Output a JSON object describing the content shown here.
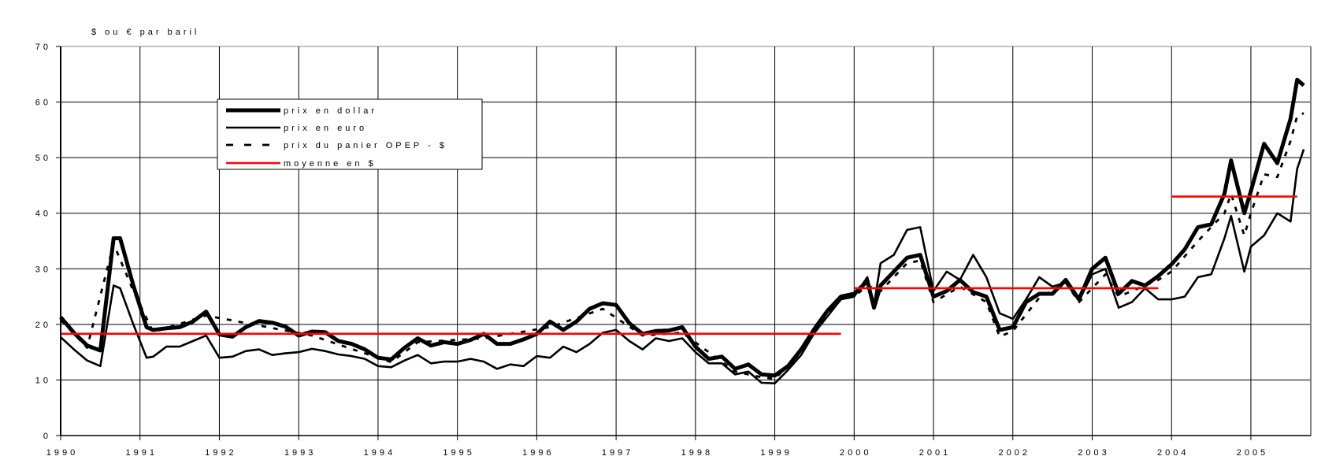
{
  "chart_data": {
    "type": "line",
    "title": "",
    "ylabel": "$ ou € par baril",
    "xlabel": "",
    "ylim": [
      0,
      70
    ],
    "yticks": [
      "0",
      "10",
      "20",
      "30",
      "40",
      "50",
      "60",
      "70"
    ],
    "xlim": [
      "1990-01",
      "2005-09"
    ],
    "xticks": [
      "1990",
      "1991",
      "1992",
      "1993",
      "1994",
      "1995",
      "1996",
      "1997",
      "1998",
      "1999",
      "2000",
      "2001",
      "2002",
      "2003",
      "2004",
      "2005"
    ],
    "grid": true,
    "legend_position": "top-left",
    "series": [
      {
        "name": "prix en dollar",
        "color": "#000000",
        "style": "thick-solid",
        "points": [
          [
            "1990-01",
            21.3
          ],
          [
            "1990-03",
            18.5
          ],
          [
            "1990-05",
            16.2
          ],
          [
            "1990-07",
            15.3
          ],
          [
            "1990-09",
            35.5
          ],
          [
            "1990-10",
            35.5
          ],
          [
            "1990-12",
            27
          ],
          [
            "1991-02",
            19.5
          ],
          [
            "1991-03",
            19
          ],
          [
            "1991-05",
            19.3
          ],
          [
            "1991-07",
            19.5
          ],
          [
            "1991-09",
            20.5
          ],
          [
            "1991-11",
            22.3
          ],
          [
            "1992-01",
            18.2
          ],
          [
            "1992-03",
            17.8
          ],
          [
            "1992-05",
            19.5
          ],
          [
            "1992-07",
            20.6
          ],
          [
            "1992-09",
            20.3
          ],
          [
            "1992-11",
            19.6
          ],
          [
            "1993-01",
            18
          ],
          [
            "1993-03",
            18.7
          ],
          [
            "1993-05",
            18.6
          ],
          [
            "1993-07",
            17
          ],
          [
            "1993-09",
            16.5
          ],
          [
            "1993-11",
            15.5
          ],
          [
            "1994-01",
            14
          ],
          [
            "1994-03",
            13.7
          ],
          [
            "1994-05",
            15.8
          ],
          [
            "1994-07",
            17.5
          ],
          [
            "1994-09",
            16.2
          ],
          [
            "1994-11",
            16.8
          ],
          [
            "1995-01",
            16.5
          ],
          [
            "1995-03",
            17.2
          ],
          [
            "1995-05",
            18.3
          ],
          [
            "1995-07",
            16.5
          ],
          [
            "1995-09",
            16.5
          ],
          [
            "1995-11",
            17.3
          ],
          [
            "1996-01",
            18.3
          ],
          [
            "1996-03",
            20.5
          ],
          [
            "1996-05",
            19
          ],
          [
            "1996-07",
            20.5
          ],
          [
            "1996-09",
            22.8
          ],
          [
            "1996-11",
            23.8
          ],
          [
            "1997-01",
            23.5
          ],
          [
            "1997-03",
            20.2
          ],
          [
            "1997-05",
            18.3
          ],
          [
            "1997-07",
            18.8
          ],
          [
            "1997-09",
            18.9
          ],
          [
            "1997-11",
            19.5
          ],
          [
            "1998-01",
            16
          ],
          [
            "1998-03",
            13.8
          ],
          [
            "1998-05",
            14.2
          ],
          [
            "1998-07",
            12
          ],
          [
            "1998-09",
            12.8
          ],
          [
            "1998-11",
            11
          ],
          [
            "1999-01",
            10.8
          ],
          [
            "1999-03",
            12.5
          ],
          [
            "1999-05",
            15.5
          ],
          [
            "1999-07",
            19.2
          ],
          [
            "1999-09",
            22.5
          ],
          [
            "1999-11",
            25
          ],
          [
            "2000-01",
            25.5
          ],
          [
            "2000-03",
            27.8
          ],
          [
            "2000-04",
            23
          ],
          [
            "2000-05",
            27
          ],
          [
            "2000-07",
            29.5
          ],
          [
            "2000-09",
            32
          ],
          [
            "2000-11",
            32.5
          ],
          [
            "2001-01",
            25
          ],
          [
            "2001-03",
            26
          ],
          [
            "2001-05",
            28
          ],
          [
            "2001-07",
            25.8
          ],
          [
            "2001-09",
            25
          ],
          [
            "2001-11",
            19
          ],
          [
            "2002-01",
            19.5
          ],
          [
            "2002-03",
            24
          ],
          [
            "2002-05",
            25.5
          ],
          [
            "2002-07",
            25.5
          ],
          [
            "2002-09",
            28
          ],
          [
            "2002-11",
            24.5
          ],
          [
            "2003-01",
            30
          ],
          [
            "2003-03",
            32
          ],
          [
            "2003-05",
            25.5
          ],
          [
            "2003-07",
            27.8
          ],
          [
            "2003-09",
            27
          ],
          [
            "2003-11",
            28.7
          ],
          [
            "2004-01",
            30.8
          ],
          [
            "2004-03",
            33.5
          ],
          [
            "2004-05",
            37.5
          ],
          [
            "2004-07",
            38
          ],
          [
            "2004-09",
            43.5
          ],
          [
            "2004-10",
            49.5
          ],
          [
            "2004-12",
            40
          ],
          [
            "2005-01",
            44
          ],
          [
            "2005-03",
            52.5
          ],
          [
            "2005-05",
            49
          ],
          [
            "2005-07",
            57
          ],
          [
            "2005-08",
            64
          ],
          [
            "2005-09",
            63
          ]
        ]
      },
      {
        "name": "prix en euro",
        "color": "#000000",
        "style": "solid",
        "points": [
          [
            "1990-01",
            17.7
          ],
          [
            "1990-03",
            15.5
          ],
          [
            "1990-05",
            13.5
          ],
          [
            "1990-07",
            12.5
          ],
          [
            "1990-09",
            27
          ],
          [
            "1990-10",
            26.5
          ],
          [
            "1990-12",
            20
          ],
          [
            "1991-02",
            14
          ],
          [
            "1991-03",
            14.2
          ],
          [
            "1991-05",
            16
          ],
          [
            "1991-07",
            16
          ],
          [
            "1991-09",
            17
          ],
          [
            "1991-11",
            18
          ],
          [
            "1992-01",
            14
          ],
          [
            "1992-03",
            14.2
          ],
          [
            "1992-05",
            15.2
          ],
          [
            "1992-07",
            15.5
          ],
          [
            "1992-09",
            14.5
          ],
          [
            "1992-11",
            14.8
          ],
          [
            "1993-01",
            15
          ],
          [
            "1993-03",
            15.6
          ],
          [
            "1993-05",
            15.2
          ],
          [
            "1993-07",
            14.6
          ],
          [
            "1993-09",
            14.3
          ],
          [
            "1993-11",
            13.8
          ],
          [
            "1994-01",
            12.5
          ],
          [
            "1994-03",
            12.3
          ],
          [
            "1994-05",
            13.5
          ],
          [
            "1994-07",
            14.5
          ],
          [
            "1994-09",
            13
          ],
          [
            "1994-11",
            13.3
          ],
          [
            "1995-01",
            13.3
          ],
          [
            "1995-03",
            13.8
          ],
          [
            "1995-05",
            13.3
          ],
          [
            "1995-07",
            12
          ],
          [
            "1995-09",
            12.8
          ],
          [
            "1995-11",
            12.5
          ],
          [
            "1996-01",
            14.3
          ],
          [
            "1996-03",
            14
          ],
          [
            "1996-05",
            16
          ],
          [
            "1996-07",
            15
          ],
          [
            "1996-09",
            16.5
          ],
          [
            "1996-11",
            18.5
          ],
          [
            "1997-01",
            19
          ],
          [
            "1997-03",
            17
          ],
          [
            "1997-05",
            15.5
          ],
          [
            "1997-07",
            17.5
          ],
          [
            "1997-09",
            17
          ],
          [
            "1997-11",
            17.5
          ],
          [
            "1998-01",
            15
          ],
          [
            "1998-03",
            13
          ],
          [
            "1998-05",
            13
          ],
          [
            "1998-07",
            11
          ],
          [
            "1998-09",
            11.5
          ],
          [
            "1998-11",
            9.5
          ],
          [
            "1999-01",
            9.4
          ],
          [
            "1999-03",
            11.8
          ],
          [
            "1999-05",
            14.5
          ],
          [
            "1999-07",
            18.5
          ],
          [
            "1999-09",
            21.5
          ],
          [
            "1999-11",
            24.5
          ],
          [
            "2000-01",
            25
          ],
          [
            "2000-03",
            28.5
          ],
          [
            "2000-04",
            23.5
          ],
          [
            "2000-05",
            31
          ],
          [
            "2000-07",
            32.5
          ],
          [
            "2000-09",
            37
          ],
          [
            "2000-11",
            37.5
          ],
          [
            "2001-01",
            26
          ],
          [
            "2001-03",
            29.5
          ],
          [
            "2001-05",
            28
          ],
          [
            "2001-07",
            32.5
          ],
          [
            "2001-09",
            28.5
          ],
          [
            "2001-11",
            22
          ],
          [
            "2002-01",
            21
          ],
          [
            "2002-03",
            24.5
          ],
          [
            "2002-05",
            28.5
          ],
          [
            "2002-07",
            26.8
          ],
          [
            "2002-09",
            27.5
          ],
          [
            "2002-11",
            24.3
          ],
          [
            "2003-01",
            29
          ],
          [
            "2003-03",
            30
          ],
          [
            "2003-05",
            23
          ],
          [
            "2003-07",
            24
          ],
          [
            "2003-09",
            26.5
          ],
          [
            "2003-11",
            24.5
          ],
          [
            "2004-01",
            24.5
          ],
          [
            "2004-03",
            25
          ],
          [
            "2004-05",
            28.5
          ],
          [
            "2004-07",
            29
          ],
          [
            "2004-09",
            35.5
          ],
          [
            "2004-10",
            39.5
          ],
          [
            "2004-12",
            29.5
          ],
          [
            "2005-01",
            34
          ],
          [
            "2005-03",
            36
          ],
          [
            "2005-05",
            40
          ],
          [
            "2005-07",
            38.5
          ],
          [
            "2005-08",
            48
          ],
          [
            "2005-09",
            51.5
          ]
        ]
      },
      {
        "name": "prix du panier OPEP - $",
        "color": "#000000",
        "style": "dashed",
        "points": [
          [
            "1990-01",
            20.8
          ],
          [
            "1990-05",
            15.8
          ],
          [
            "1990-09",
            34.5
          ],
          [
            "1990-12",
            26
          ],
          [
            "1991-03",
            18.6
          ],
          [
            "1991-11",
            21.6
          ],
          [
            "1992-07",
            19.8
          ],
          [
            "1993-03",
            18
          ],
          [
            "1993-11",
            14.8
          ],
          [
            "1994-03",
            13.2
          ],
          [
            "1994-07",
            16.8
          ],
          [
            "1995-05",
            17.5
          ],
          [
            "1996-03",
            19.5
          ],
          [
            "1996-11",
            22.8
          ],
          [
            "1997-05",
            18
          ],
          [
            "1997-11",
            18.5
          ],
          [
            "1998-07",
            11.5
          ],
          [
            "1998-11",
            10.5
          ],
          [
            "1999-01",
            10.2
          ],
          [
            "1999-05",
            15
          ],
          [
            "1999-09",
            21.8
          ],
          [
            "1999-11",
            24.5
          ],
          [
            "2000-01",
            25
          ],
          [
            "2000-03",
            27
          ],
          [
            "2000-05",
            26
          ],
          [
            "2000-09",
            31
          ],
          [
            "2000-11",
            31.5
          ],
          [
            "2001-01",
            24
          ],
          [
            "2001-05",
            26.8
          ],
          [
            "2001-09",
            24
          ],
          [
            "2001-11",
            17.8
          ],
          [
            "2002-01",
            18.8
          ],
          [
            "2002-05",
            24.8
          ],
          [
            "2002-09",
            27.5
          ],
          [
            "2002-11",
            24
          ],
          [
            "2003-03",
            29
          ],
          [
            "2003-05",
            25
          ],
          [
            "2003-11",
            28
          ],
          [
            "2004-01",
            29.5
          ],
          [
            "2004-05",
            35
          ],
          [
            "2004-09",
            40
          ],
          [
            "2004-10",
            43.5
          ],
          [
            "2004-12",
            36
          ],
          [
            "2005-01",
            40
          ],
          [
            "2005-03",
            47
          ],
          [
            "2005-05",
            46.5
          ],
          [
            "2005-07",
            53
          ],
          [
            "2005-08",
            57.5
          ],
          [
            "2005-09",
            58
          ]
        ]
      },
      {
        "name": "moyenne en $",
        "color": "#ff0000",
        "style": "solid",
        "segments": [
          {
            "from": "1990-01",
            "to": "1999-11",
            "value": 18.3
          },
          {
            "from": "2000-01",
            "to": "2003-11",
            "value": 26.5
          },
          {
            "from": "2004-01",
            "to": "2005-08",
            "value": 43
          }
        ]
      }
    ]
  }
}
